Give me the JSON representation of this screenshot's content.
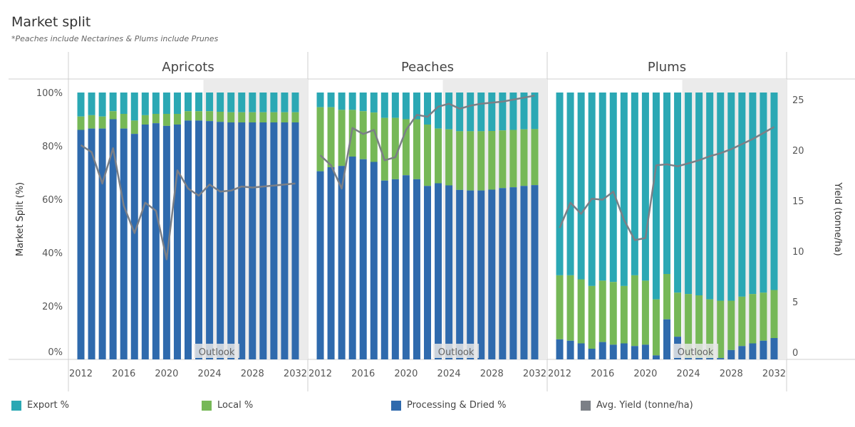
{
  "title": "Market split",
  "subtitle": "*Peaches include Nectarines & Plums include Prunes",
  "colors": {
    "export": "#2ba8b4",
    "local": "#76b857",
    "processing": "#2f6aad",
    "yield": "#7b7f86",
    "outlook_bg": "#ebebeb"
  },
  "chart_data": {
    "type": "bar",
    "stacked": true,
    "years": [
      2012,
      2013,
      2014,
      2015,
      2016,
      2017,
      2018,
      2019,
      2020,
      2021,
      2022,
      2023,
      2024,
      2025,
      2026,
      2027,
      2028,
      2029,
      2030,
      2031,
      2032
    ],
    "x_ticks": [
      2012,
      2016,
      2020,
      2024,
      2028,
      2032
    ],
    "outlook_start": 2024,
    "outlook_label": "Outlook",
    "y_left": {
      "label": "Market Split (%)",
      "ticks": [
        "0%",
        "20%",
        "40%",
        "60%",
        "80%",
        "100%"
      ],
      "range": [
        0,
        100
      ]
    },
    "y_right": {
      "label": "Yield (tonne/ha)",
      "ticks": [
        0,
        5,
        10,
        15,
        20,
        25
      ],
      "range": [
        0,
        25
      ]
    },
    "legend": [
      {
        "key": "export",
        "label": "Export %"
      },
      {
        "key": "local",
        "label": "Local %"
      },
      {
        "key": "processing",
        "label": "Processing & Dried %"
      },
      {
        "key": "yield",
        "label": "Avg. Yield (tonne/ha)"
      }
    ],
    "panels": [
      {
        "name": "Apricots",
        "processing": [
          86,
          86.5,
          86.5,
          90,
          86.5,
          84.5,
          88,
          88.5,
          87.5,
          88,
          89.5,
          89.5,
          89.3,
          89,
          88.8,
          88.8,
          88.8,
          88.8,
          88.8,
          88.8,
          88.8
        ],
        "local": [
          5,
          5,
          4.5,
          3,
          5.5,
          5,
          3.5,
          3.5,
          4.5,
          4,
          3.5,
          3.5,
          3.7,
          3.8,
          3.8,
          3.8,
          3.8,
          3.8,
          3.8,
          3.8,
          3.8
        ],
        "yield": [
          20.5,
          19.8,
          16.7,
          20.2,
          14.5,
          11.8,
          14.8,
          14,
          9.2,
          18,
          16.2,
          15.5,
          16.6,
          15.9,
          16,
          16.4,
          16.3,
          16.4,
          16.5,
          16.6,
          16.7
        ]
      },
      {
        "name": "Peaches",
        "processing": [
          70.5,
          72,
          72.5,
          76,
          75,
          74,
          67,
          67.5,
          69,
          67.5,
          65,
          66,
          65.2,
          63.5,
          63.3,
          63.3,
          63.6,
          64.2,
          64.5,
          65,
          65.3
        ],
        "local": [
          24,
          22.5,
          21,
          17.5,
          18,
          18.5,
          23.5,
          23,
          21,
          22.5,
          23,
          20.5,
          21,
          22,
          22.2,
          22.2,
          22,
          21.6,
          21.5,
          21.2,
          21
        ],
        "yield": [
          19.5,
          18.5,
          16.2,
          22.2,
          21.6,
          22,
          19,
          19.3,
          22,
          23.5,
          23.3,
          24.3,
          24.6,
          24.1,
          24.4,
          24.6,
          24.7,
          24.8,
          25,
          25.2,
          25.4
        ]
      },
      {
        "name": "Plums",
        "processing": [
          7.5,
          7,
          6,
          4,
          6.5,
          5.5,
          6,
          5,
          5.5,
          1.5,
          15,
          8.5,
          0.5,
          0.5,
          0.5,
          0.5,
          3.5,
          5,
          6,
          7,
          8
        ],
        "local": [
          24,
          24.5,
          24,
          23.5,
          23,
          23.5,
          21.5,
          26.5,
          24,
          21,
          17,
          16.5,
          24,
          23.5,
          22,
          21.5,
          18.5,
          18.5,
          18.5,
          18,
          18
        ],
        "yield": [
          12.3,
          14.8,
          13.7,
          15.2,
          15.1,
          15.9,
          13.1,
          11.1,
          11.3,
          18.5,
          18.6,
          18.4,
          18.7,
          19,
          19.4,
          19.7,
          20.1,
          20.6,
          21.1,
          21.7,
          22.3
        ]
      }
    ]
  }
}
